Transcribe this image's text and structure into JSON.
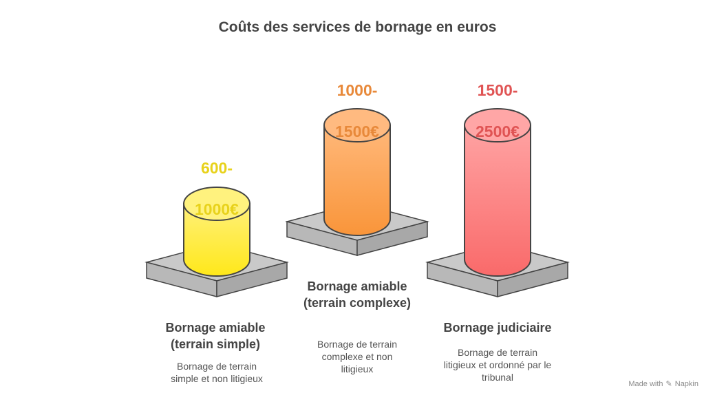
{
  "title": "Coûts des services de bornage en euros",
  "items": [
    {
      "price_line1": "600-",
      "price_line2": "1000€",
      "label": "Bornage amiable (terrain simple)",
      "description": "Bornage de terrain simple et non litigieux",
      "color": "#E8D21C"
    },
    {
      "price_line1": "1000-",
      "price_line2": "1500€",
      "label": "Bornage amiable (terrain complexe)",
      "description": "Bornage de terrain complexe et non litigieux",
      "color": "#E8893A"
    },
    {
      "price_line1": "1500-",
      "price_line2": "2500€",
      "label": "Bornage judiciaire",
      "description": "Bornage de terrain litigieux et ordonné par le tribunal",
      "color": "#E05454"
    }
  ],
  "footer": {
    "made_with": "Made with",
    "brand": "Napkin"
  }
}
